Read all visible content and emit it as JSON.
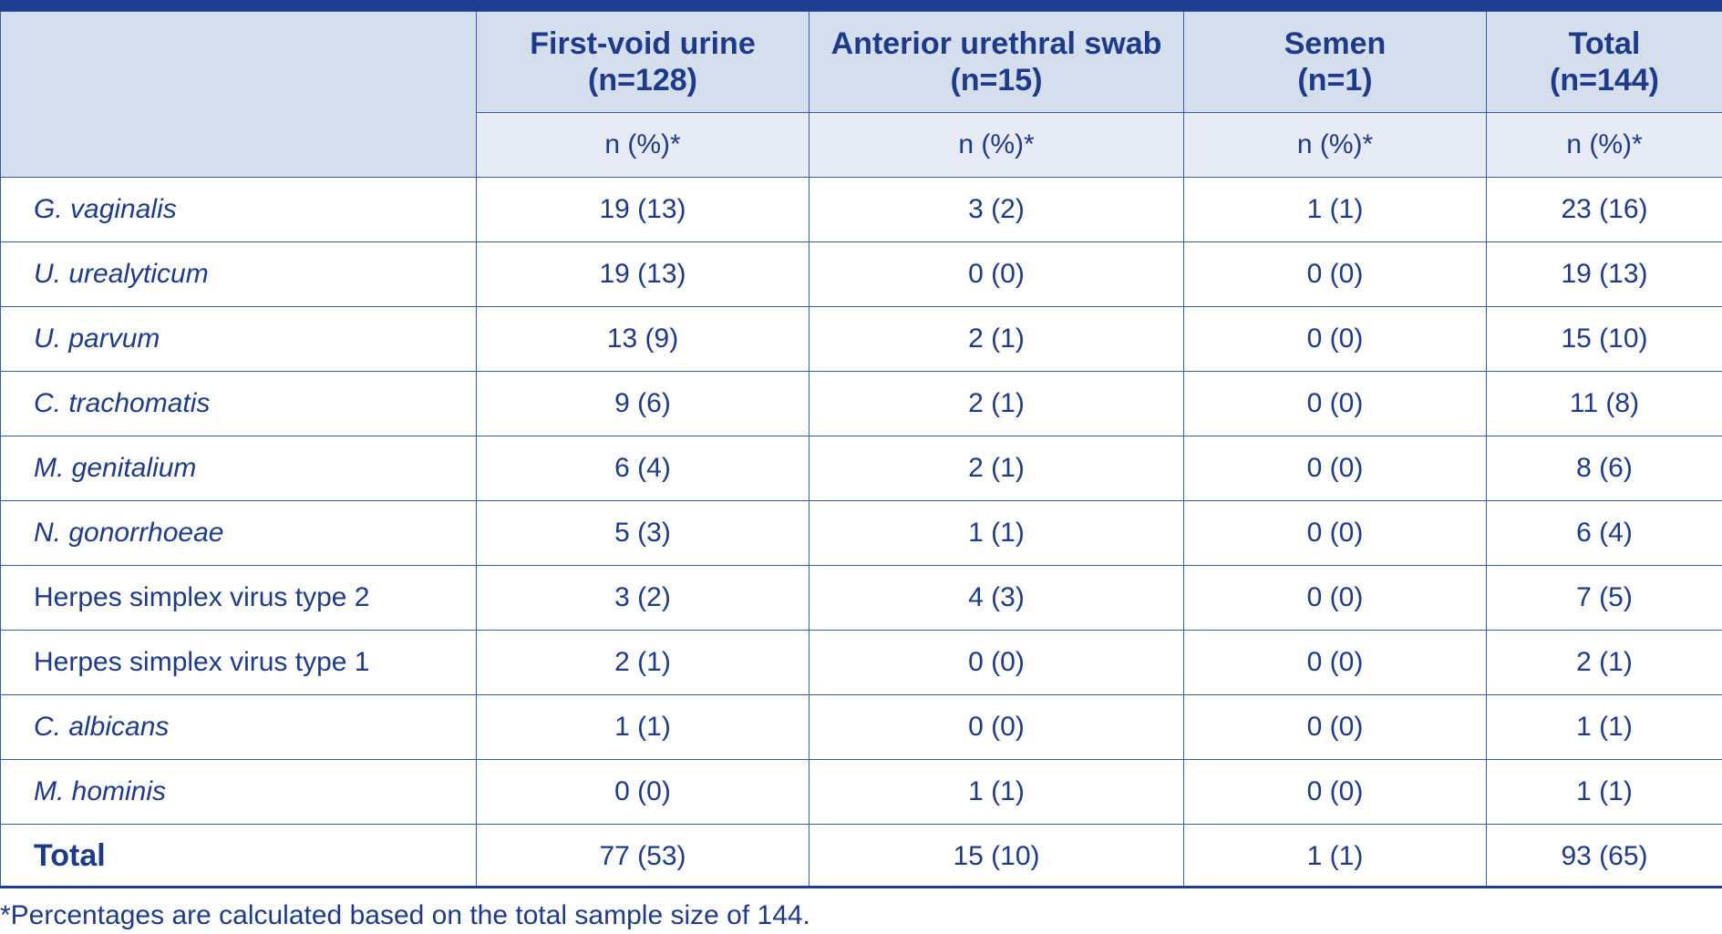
{
  "header": {
    "columns": [
      {
        "title": "First-void urine",
        "n": "(n=128)",
        "unit": "n (%)*"
      },
      {
        "title": "Anterior urethral swab",
        "n": "(n=15)",
        "unit": "n (%)*"
      },
      {
        "title": "Semen",
        "n": "(n=1)",
        "unit": "n (%)*"
      },
      {
        "title": "Total",
        "n": "(n=144)",
        "unit": "n (%)*"
      }
    ]
  },
  "rows": [
    {
      "label": "G. vaginalis",
      "values": [
        "19 (13)",
        "3 (2)",
        "1 (1)",
        "23 (16)"
      ]
    },
    {
      "label": "U. urealyticum",
      "values": [
        "19 (13)",
        "0 (0)",
        "0 (0)",
        "19 (13)"
      ]
    },
    {
      "label": "U. parvum",
      "values": [
        "13 (9)",
        "2 (1)",
        "0 (0)",
        "15 (10)"
      ]
    },
    {
      "label": "C. trachomatis",
      "values": [
        "9 (6)",
        "2 (1)",
        "0 (0)",
        "11 (8)"
      ]
    },
    {
      "label": "M. genitalium",
      "values": [
        "6 (4)",
        "2 (1)",
        "0 (0)",
        "8 (6)"
      ]
    },
    {
      "label": "N. gonorrhoeae",
      "values": [
        "5 (3)",
        "1 (1)",
        "0 (0)",
        "6 (4)"
      ]
    },
    {
      "label": "Herpes simplex virus type 2",
      "values": [
        "3 (2)",
        "4 (3)",
        "0 (0)",
        "7 (5)"
      ]
    },
    {
      "label": "Herpes simplex virus type 1",
      "values": [
        "2 (1)",
        "0 (0)",
        "0 (0)",
        "2 (1)"
      ]
    },
    {
      "label": "C. albicans",
      "values": [
        "1 (1)",
        "0 (0)",
        "0 (0)",
        "1 (1)"
      ]
    },
    {
      "label": "M. hominis",
      "values": [
        "0 (0)",
        "1 (1)",
        "0 (0)",
        "1 (1)"
      ]
    }
  ],
  "total": {
    "label": "Total",
    "values": [
      "77 (53)",
      "15 (10)",
      "1 (1)",
      "93 (65)"
    ]
  },
  "footnote": "*Percentages are calculated based on the total sample size of 144."
}
